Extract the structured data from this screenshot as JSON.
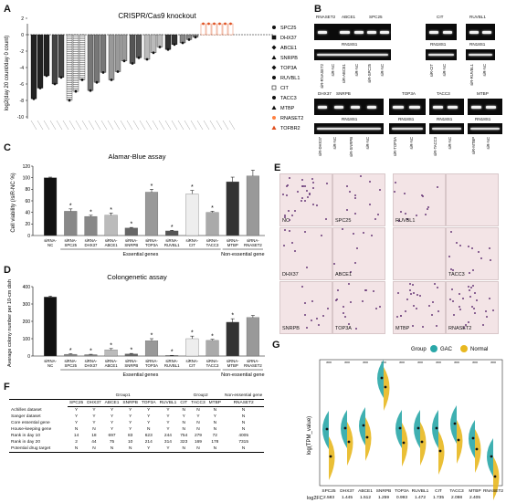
{
  "panels": {
    "a": "A",
    "b": "B",
    "c": "C",
    "d": "D",
    "e": "E",
    "f": "F",
    "g": "G"
  },
  "panelA": {
    "title": "CRISPR/Cas9 knockout",
    "ylabel": "log2(day 20 count/day 0 count)",
    "yticks": [
      "2",
      "0",
      "-2",
      "-4",
      "-6",
      "-8",
      "-10"
    ],
    "legend": [
      "SPC25",
      "DHX37",
      "ABCE1",
      "SNRPB",
      "TOP3A",
      "RUVBL1",
      "CIT",
      "TACC3",
      "MTBP",
      "RNASET2",
      "TOFBR2"
    ],
    "legend_colors": [
      "#111111",
      "#111111",
      "#111111",
      "#111111",
      "#111111",
      "#111111",
      "#111111",
      "#111111",
      "#111111",
      "#ff8040",
      "#e05020"
    ]
  },
  "panelB": {
    "top_left_genes": [
      "RNASET2",
      "ABCE1",
      "SPC25"
    ],
    "top_mid_gene": "CIT",
    "top_right_gene": "RUVBL1",
    "ref": "RN18S1",
    "top_left_lanes": [
      "siR-RNASET2",
      "siR-NC",
      "siR-ABCE1",
      "siR-NC",
      "siR-SPC25",
      "siR-NC"
    ],
    "top_mid_lanes": [
      "siR-CIT",
      "siR-NC"
    ],
    "top_right_lanes": [
      "siR-RUVBL1",
      "siR-NC"
    ],
    "bot_genes": [
      "DHX37",
      "SNRPB",
      "TOP3A",
      "TACC3",
      "MTBP"
    ],
    "bot_lanes": [
      "siR-DHX37",
      "siR-NC",
      "siR-SNRPB",
      "siR-NC",
      "siR-TOP3A",
      "siR-NC",
      "siR-TACC3",
      "siR-NC",
      "siR-MTBP",
      "siR-NC"
    ]
  },
  "chart_data": [
    {
      "type": "bar",
      "title": "Alamar-Blue assay",
      "ylabel": "Cell viability (/siR-NC %)",
      "ylim": [
        0,
        120
      ],
      "yticks": [
        "0",
        "20",
        "40",
        "60",
        "80",
        "100",
        "120"
      ],
      "categories": [
        "siRNA-NC",
        "siRNA-SPC25",
        "siRNA-DHX37",
        "siRNA-ABCE1",
        "siRNA-SNRPB",
        "siRNA-TOP3A",
        "siRNA-RUVBL1",
        "siRNA-CIT",
        "siRNA-TACC3",
        "siRNA-MTBP",
        "siRNA-RNASET2"
      ],
      "values": [
        100,
        42,
        33,
        35,
        13,
        75,
        8,
        72,
        40,
        93,
        103
      ],
      "errors": [
        1,
        4,
        2,
        4,
        1,
        5,
        1,
        6,
        2,
        8,
        10
      ],
      "colors": [
        "#111111",
        "#888888",
        "#888888",
        "#bbbbbb",
        "#666666",
        "#999999",
        "#555555",
        "#eeeeee",
        "#aaaaaa",
        "#333333",
        "#999999"
      ],
      "star": [
        false,
        true,
        true,
        true,
        true,
        true,
        true,
        true,
        true,
        false,
        false
      ],
      "group_essential": "Essential genes",
      "group_non": "Non-essential gene"
    },
    {
      "type": "bar",
      "title": "Colongenetic assay",
      "ylabel": "Average colony number per 10-cm dish",
      "ylim": [
        0,
        400
      ],
      "yticks": [
        "0",
        "100",
        "200",
        "300",
        "400"
      ],
      "categories": [
        "siRNA-NC",
        "siRNA-SPC25",
        "siRNA-DHX37",
        "siRNA-ABCE1",
        "siRNA-SNRPB",
        "siRNA-TOP3A",
        "siRNA-RUVBL1",
        "siRNA-CIT",
        "siRNA-TACC3",
        "siRNA-MTBP",
        "siRNA-RNASET2"
      ],
      "values": [
        340,
        10,
        8,
        35,
        12,
        88,
        3,
        100,
        90,
        195,
        222
      ],
      "errors": [
        6,
        3,
        2,
        8,
        3,
        12,
        1,
        15,
        6,
        20,
        12
      ],
      "colors": [
        "#111111",
        "#888888",
        "#888888",
        "#bbbbbb",
        "#666666",
        "#999999",
        "#555555",
        "#eeeeee",
        "#aaaaaa",
        "#333333",
        "#999999"
      ],
      "star": [
        false,
        true,
        true,
        true,
        true,
        true,
        true,
        true,
        true,
        true,
        false
      ],
      "group_essential": "Essential genes",
      "group_non": "Non-essential gene"
    },
    {
      "type": "violin",
      "ylabel": "log(TPM_value)",
      "legend_title": "Group",
      "series": [
        {
          "name": "GAC",
          "color": "#2aa7a8"
        },
        {
          "name": "Normal",
          "color": "#e8b820"
        }
      ],
      "categories": [
        "SPC25",
        "DHX37",
        "ABCE1",
        "SNRPB",
        "TOP3A",
        "RUVBL1",
        "CIT",
        "TACC3",
        "MTBP",
        "RNASET2"
      ],
      "sig": [
        "***",
        "***",
        "***",
        "***",
        "***",
        "***",
        "***",
        "***",
        "***",
        "***"
      ],
      "log2fc_label": "log2FC",
      "log2fc": [
        "2.583",
        "1.445",
        "1.512",
        "1.259",
        "0.993",
        "1.472",
        "1.735",
        "2.098",
        "2.405",
        ""
      ]
    }
  ],
  "panelE": {
    "wells": [
      "NC",
      "SPC25",
      "RUVBL1",
      "",
      "DHX37",
      "ABCE1",
      "",
      "TACC3",
      "SNRPB",
      "TOP3A",
      "MTBP",
      "RNASET2"
    ]
  },
  "panelF": {
    "group1": "Group1",
    "group2": "Group2",
    "nonessential": "Non-essential gene",
    "columns": [
      "SPC25",
      "DHX37",
      "ABCE1",
      "SNRPB",
      "TOP3A",
      "RUVBL1",
      "CIT",
      "TACC3",
      "MTBP",
      "RNASET2"
    ],
    "rows": [
      {
        "label": "Achilles dataset",
        "cells": [
          "Y",
          "Y",
          "Y",
          "Y",
          "Y",
          "Y",
          "N",
          "N",
          "N",
          "N"
        ]
      },
      {
        "label": "Sanger dataset",
        "cells": [
          "Y",
          "Y",
          "Y",
          "Y",
          "Y",
          "Y",
          "Y",
          "Y",
          "Y",
          "N"
        ]
      },
      {
        "label": "Core essential gene",
        "cells": [
          "Y",
          "Y",
          "Y",
          "Y",
          "Y",
          "Y",
          "N",
          "N",
          "N",
          "N"
        ]
      },
      {
        "label": "House-keeping gene",
        "cells": [
          "N",
          "N",
          "Y",
          "Y",
          "N",
          "Y",
          "N",
          "N",
          "N",
          "N"
        ]
      },
      {
        "label": "Rank in day 10",
        "cells": [
          "14",
          "18",
          "697",
          "83",
          "623",
          "244",
          "754",
          "279",
          "72",
          "4005"
        ]
      },
      {
        "label": "Rank in day 20",
        "cells": [
          "2",
          "44",
          "75",
          "10",
          "214",
          "314",
          "323",
          "169",
          "178",
          "7315"
        ]
      },
      {
        "label": "Potential drug target",
        "cells": [
          "N",
          "N",
          "N",
          "N",
          "Y",
          "Y",
          "N",
          "N",
          "N",
          "N"
        ]
      }
    ]
  }
}
